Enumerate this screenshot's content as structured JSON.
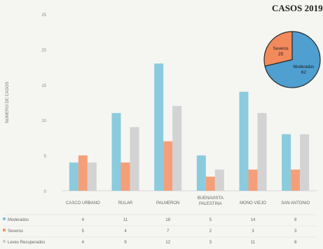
{
  "chart_data": {
    "type": "bar",
    "title": "CASOS 2019",
    "ylabel": "NUMERO DE CASOS",
    "ylim": [
      0,
      25
    ],
    "yticks": [
      0,
      5,
      10,
      15,
      20,
      25
    ],
    "grid": false,
    "categories": [
      "CASCO URBANO",
      "RULAR",
      "PALMERON",
      "BUENAVISTA PALESTINA",
      "MONO VIEJO",
      "SAN ANTONIO"
    ],
    "series": [
      {
        "name": "Moderados",
        "color": "#7fc6dc",
        "values": [
          4,
          11,
          18,
          5,
          14,
          8
        ]
      },
      {
        "name": "Severos",
        "color": "#f4966b",
        "values": [
          5,
          4,
          7,
          2,
          3,
          3
        ]
      },
      {
        "name": "Leves Recuperados",
        "color": "#cfcfcf",
        "values": [
          4,
          9,
          12,
          3,
          11,
          8
        ]
      }
    ],
    "table": [
      [
        "4",
        "11",
        "18",
        "5",
        "14",
        "8"
      ],
      [
        "5",
        "4",
        "7",
        "2",
        "3",
        "3"
      ],
      [
        "4",
        "9",
        "12",
        "3",
        "11",
        "8"
      ]
    ],
    "pie": {
      "type": "pie",
      "slices": [
        {
          "label": "Moderados",
          "value": 62,
          "text": "62",
          "color": "#4f9fd1"
        },
        {
          "label": "Severos",
          "value": 25,
          "text": "25",
          "color": "#f28a5c"
        }
      ]
    }
  }
}
